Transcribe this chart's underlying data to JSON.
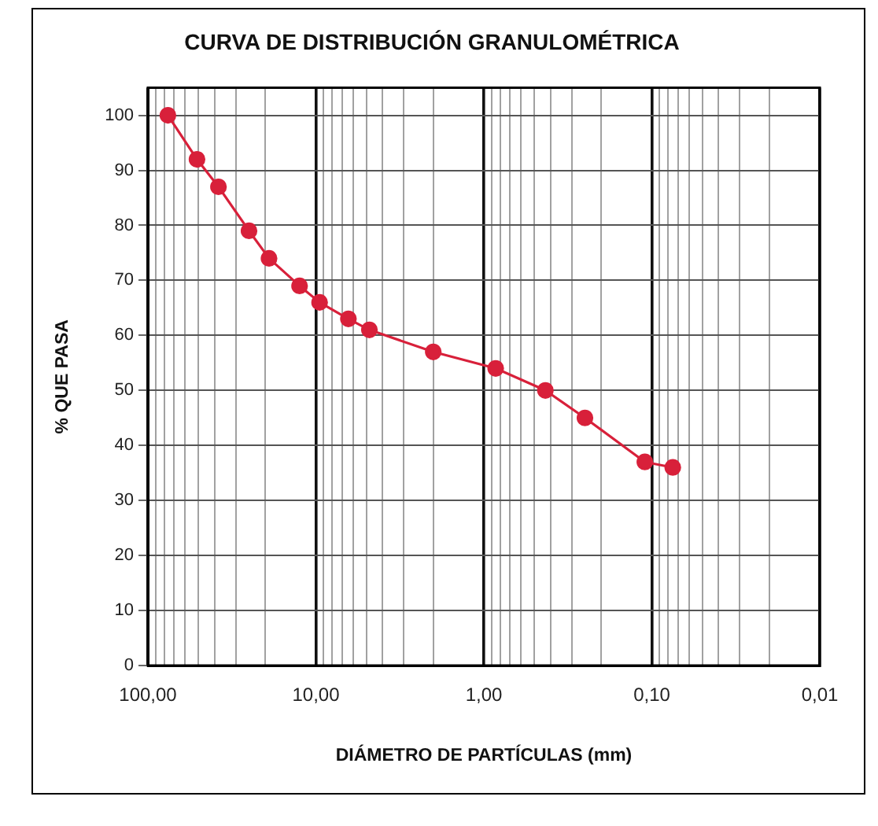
{
  "chart_data": {
    "type": "line",
    "title": "CURVA DE DISTRIBUCIÓN GRANULOMÉTRICA",
    "xlabel": "DIÁMETRO DE PARTÍCULAS (mm)",
    "ylabel": "% QUE PASA",
    "x": [
      76,
      51,
      38,
      25,
      19,
      12.5,
      9.5,
      6.4,
      4.8,
      2.0,
      0.85,
      0.43,
      0.25,
      0.11,
      0.075
    ],
    "series": [
      {
        "color": "#d8203a",
        "values": [
          100,
          92,
          87,
          79,
          74,
          69,
          66,
          63,
          61,
          57,
          54,
          50,
          45,
          37,
          36
        ]
      }
    ],
    "log": "x",
    "xlim": [
      100,
      0.01
    ],
    "xticks": [
      {
        "value": 100,
        "label": "100,00"
      },
      {
        "value": 90,
        "label": null
      },
      {
        "value": 80,
        "label": null
      },
      {
        "value": 70,
        "label": null
      },
      {
        "value": 60,
        "label": null
      },
      {
        "value": 50,
        "label": null
      },
      {
        "value": 40,
        "label": null
      },
      {
        "value": 30,
        "label": null
      },
      {
        "value": 20,
        "label": null
      },
      {
        "value": 10,
        "label": "10,00"
      },
      {
        "value": 9,
        "label": null
      },
      {
        "value": 8,
        "label": null
      },
      {
        "value": 7,
        "label": null
      },
      {
        "value": 6,
        "label": null
      },
      {
        "value": 5,
        "label": null
      },
      {
        "value": 4,
        "label": null
      },
      {
        "value": 3,
        "label": null
      },
      {
        "value": 2,
        "label": null
      },
      {
        "value": 1,
        "label": "1,00"
      },
      {
        "value": 0.9,
        "label": null
      },
      {
        "value": 0.8,
        "label": null
      },
      {
        "value": 0.7,
        "label": null
      },
      {
        "value": 0.6,
        "label": null
      },
      {
        "value": 0.5,
        "label": null
      },
      {
        "value": 0.4,
        "label": null
      },
      {
        "value": 0.3,
        "label": null
      },
      {
        "value": 0.2,
        "label": null
      },
      {
        "value": 0.1,
        "label": "0,10"
      },
      {
        "value": 0.09,
        "label": null
      },
      {
        "value": 0.08,
        "label": null
      },
      {
        "value": 0.07,
        "label": null
      },
      {
        "value": 0.06,
        "label": null
      },
      {
        "value": 0.05,
        "label": null
      },
      {
        "value": 0.04,
        "label": null
      },
      {
        "value": 0.03,
        "label": null
      },
      {
        "value": 0.02,
        "label": null
      },
      {
        "value": 0.01,
        "label": "0,01"
      }
    ],
    "ylim": [
      0,
      105
    ],
    "yticks": [
      0,
      10,
      20,
      30,
      40,
      50,
      60,
      70,
      80,
      90,
      100
    ],
    "grid": true,
    "marker": "circle",
    "line_style": "solid"
  }
}
